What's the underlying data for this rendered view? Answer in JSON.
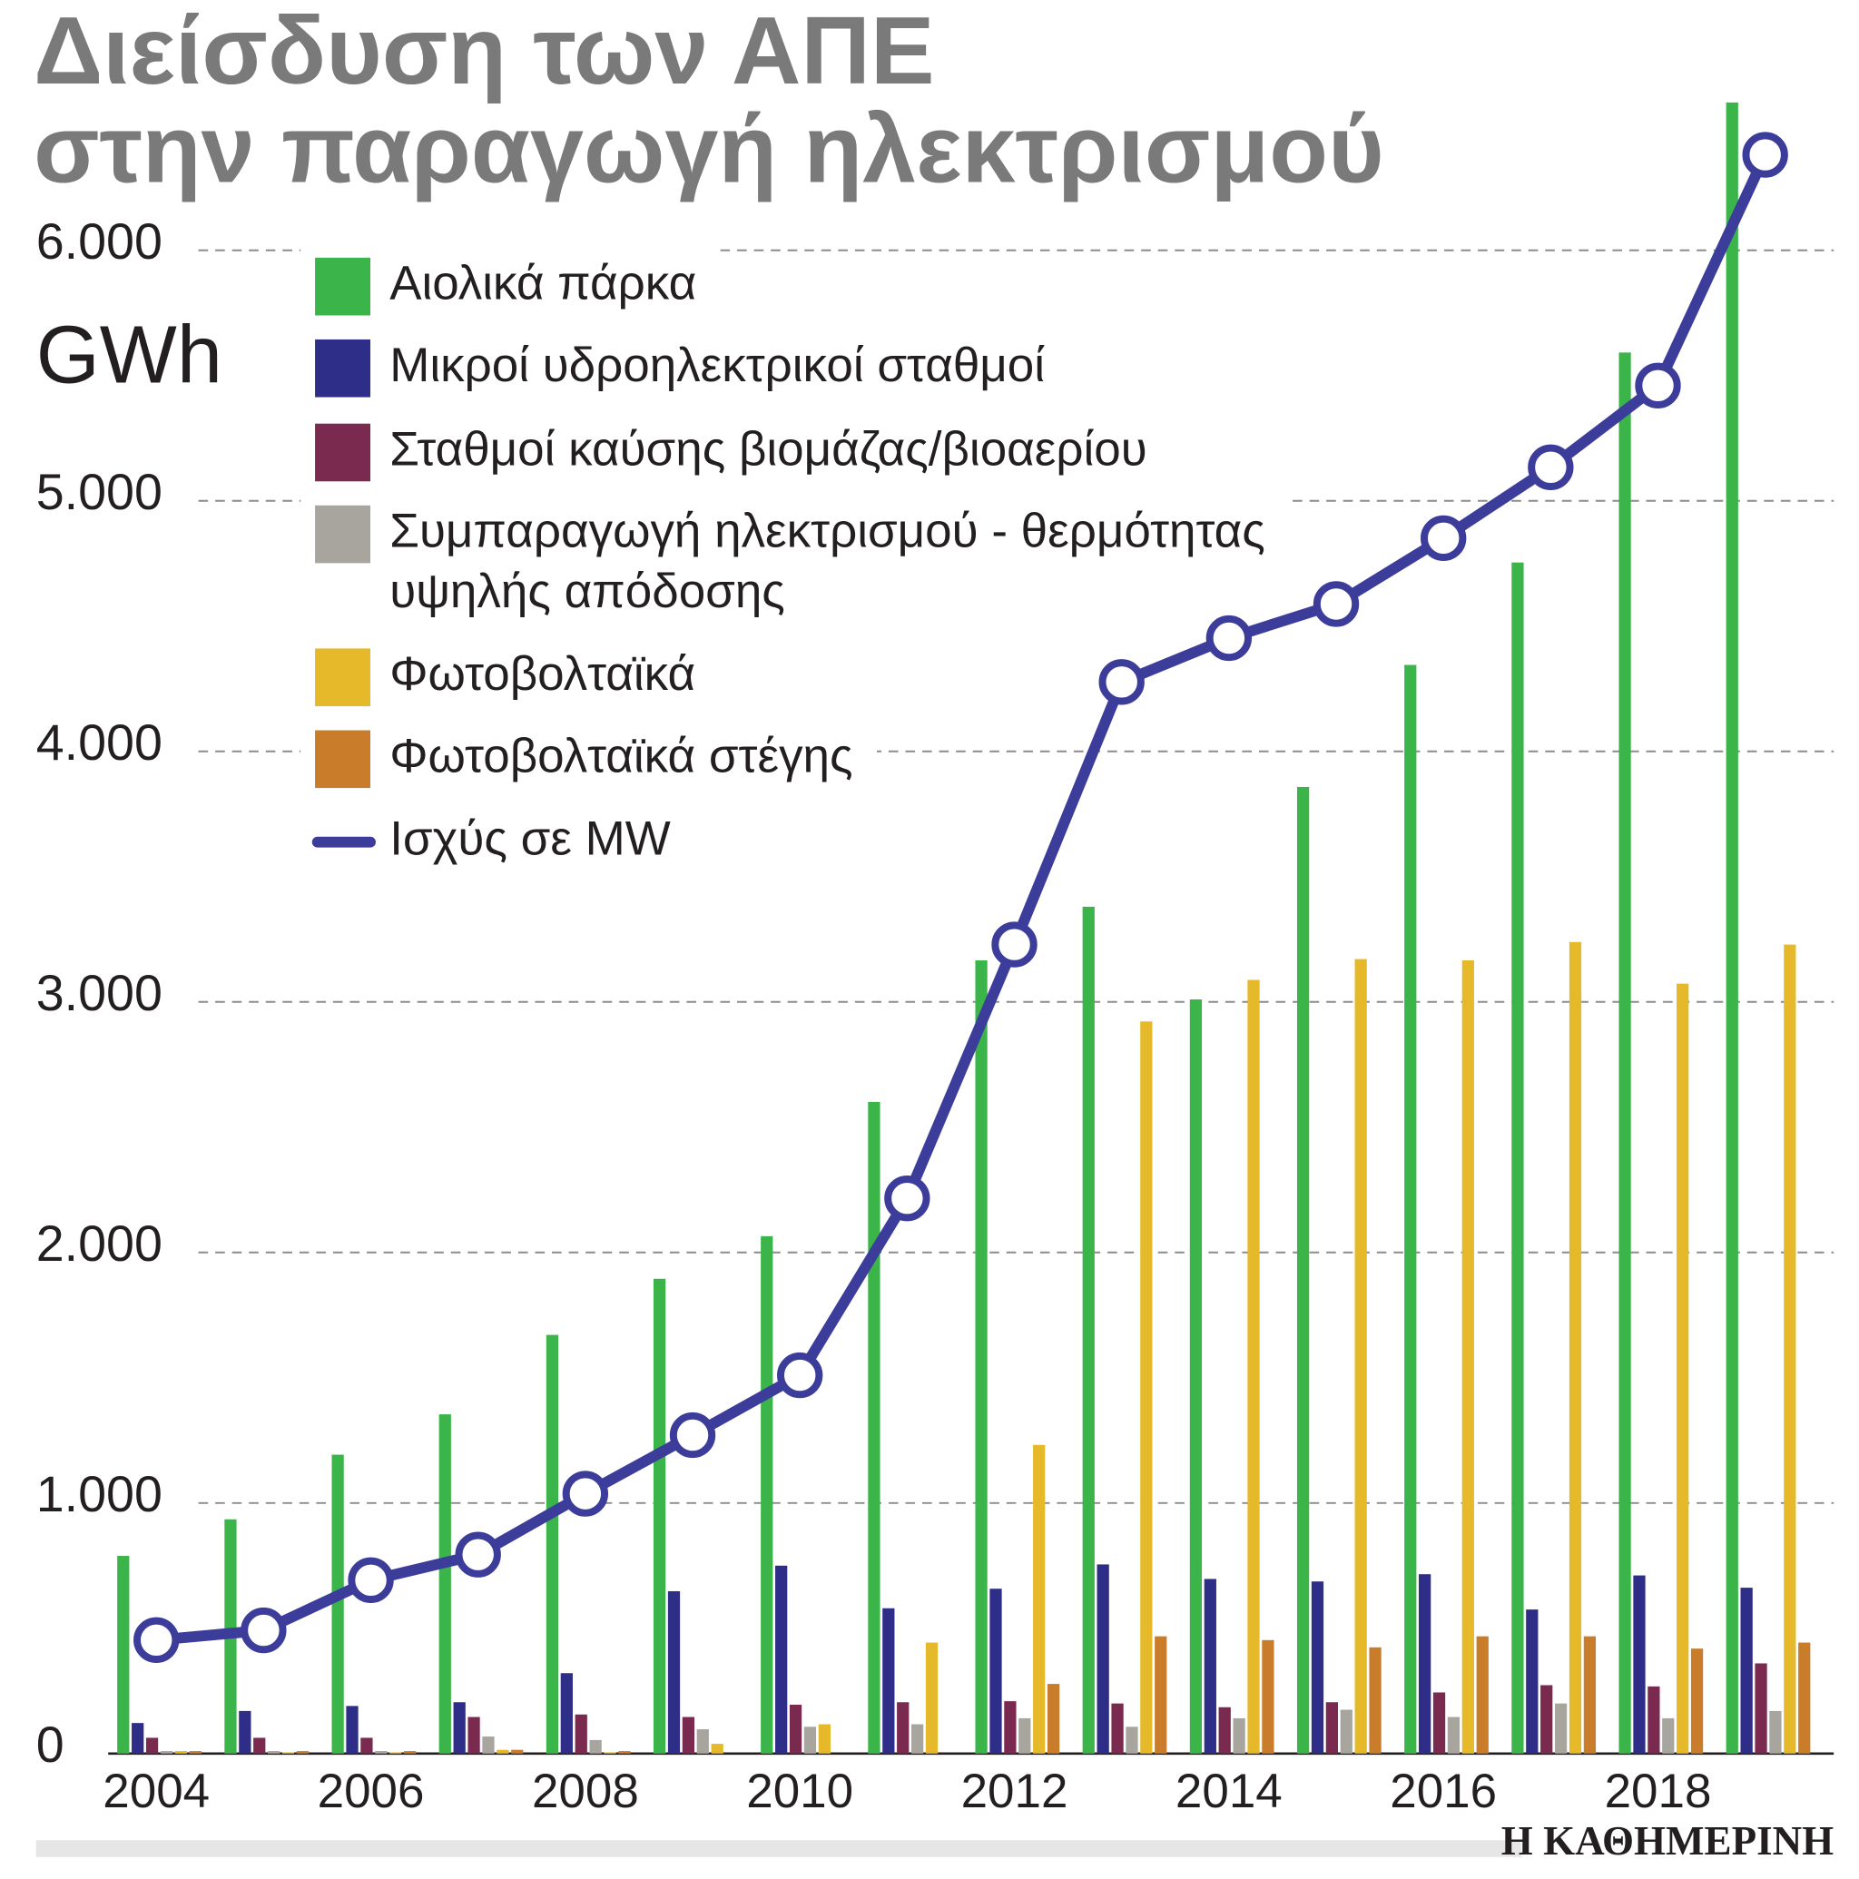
{
  "chart_data": {
    "type": "bar",
    "title": [
      "Διείσδυση των ΑΠΕ",
      "στην παραγωγή ηλεκτρισμού"
    ],
    "y_unit": "GWh",
    "source": "Η ΚΑΘΗΜΕΡΙΝΗ",
    "categories": [
      "2004",
      null,
      "2006",
      null,
      "2008",
      null,
      "2010",
      null,
      "2012",
      null,
      "2014",
      null,
      "2016",
      null,
      "2018",
      null
    ],
    "ylim": [
      0,
      6700
    ],
    "yticks": [
      0,
      {
        "value": 1000,
        "label": "1.000"
      },
      {
        "value": 2000,
        "label": "2.000"
      },
      {
        "value": 3000,
        "label": "3.000"
      },
      {
        "value": 4000,
        "label": "4.000"
      },
      {
        "value": 5000,
        "label": "5.000"
      },
      {
        "value": 6000,
        "label": "6.000"
      }
    ],
    "grid": true,
    "legend": "top-left",
    "series": [
      {
        "name": "Αιολικά πάρκα",
        "color": "#3bb54a",
        "values": [
          789,
          935,
          1193,
          1354,
          1671,
          1895,
          2065,
          2601,
          3166,
          3380,
          3010,
          3858,
          4345,
          4754,
          5592,
          6590
        ]
      },
      {
        "name": "Μικροί υδροηλεκτρικοί σταθμοί",
        "color": "#2e2d88",
        "values": [
          122,
          170,
          190,
          205,
          321,
          648,
          750,
          580,
          658,
          755,
          697,
          687,
          716,
          575,
          711,
          662
        ]
      },
      {
        "name": "Σταθμοί καύσης βιομάζας/βιοαερίου",
        "color": "#7b2a4f",
        "values": [
          63,
          63,
          63,
          146,
          156,
          146,
          195,
          205,
          209,
          200,
          185,
          205,
          244,
          273,
          268,
          360
        ]
      },
      {
        "name": "Συμπαραγωγή ηλεκτρισμού - θερμότητας υψηλής απόδοσης",
        "color": "#a7a59e",
        "values": [
          10,
          10,
          10,
          68,
          54,
          97,
          107,
          117,
          141,
          107,
          141,
          175,
          146,
          200,
          141,
          170
        ]
      },
      {
        "name": "Φωτοβολταϊκά",
        "color": "#e6b92a",
        "values": [
          10,
          5,
          5,
          15,
          5,
          39,
          117,
          443,
          1232,
          2922,
          3088,
          3171,
          3166,
          3239,
          3073,
          3229
        ]
      },
      {
        "name": "Φωτοβολταϊκά στέγης",
        "color": "#c97d2a",
        "values": [
          10,
          10,
          10,
          15,
          10,
          0,
          0,
          0,
          278,
          468,
          453,
          424,
          468,
          468,
          419,
          443
        ]
      },
      {
        "name": "Ισχύς σε MW",
        "type": "line",
        "color": "#3c3c9a",
        "values": [
          453,
          492,
          692,
          794,
          1037,
          1271,
          1510,
          2216,
          3229,
          4277,
          4452,
          4588,
          4851,
          5134,
          5460,
          6381
        ]
      }
    ]
  }
}
